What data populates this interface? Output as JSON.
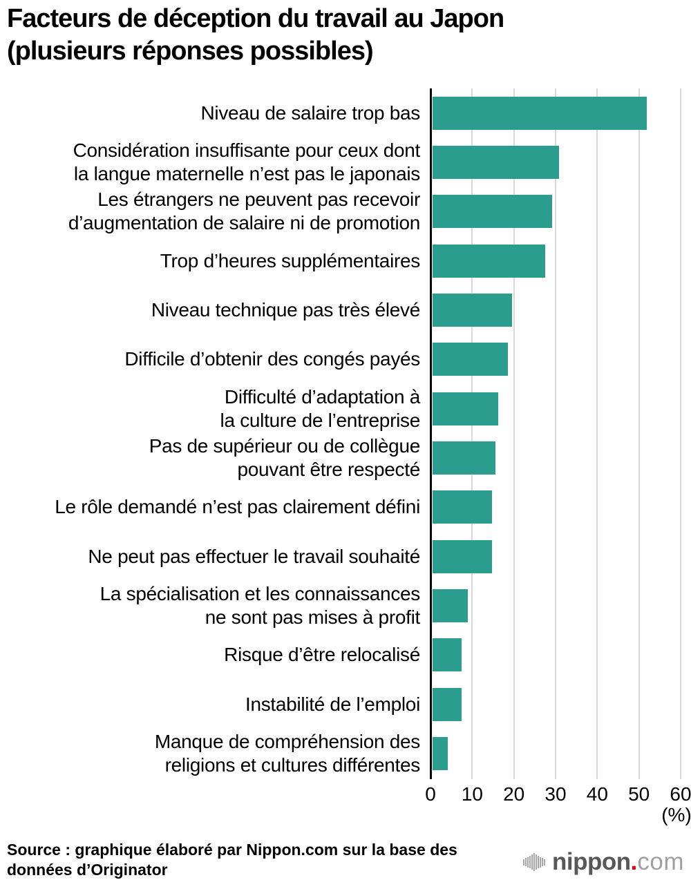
{
  "title": "Facteurs de déception du travail au Japon\n(plusieurs réponses possibles)",
  "chart_data": {
    "type": "bar",
    "orientation": "horizontal",
    "categories": [
      "Niveau de salaire trop bas",
      "Considération insuffisante pour ceux dont\nla langue maternelle n’est pas le japonais",
      "Les étrangers ne peuvent pas recevoir\nd’augmentation de salaire ni de promotion",
      "Trop d’heures supplémentaires",
      "Niveau technique pas très élevé",
      "Difficile d’obtenir des congés payés",
      "Difficulté d’adaptation à\nla culture de l’entreprise",
      "Pas de supérieur ou de collègue\npouvant être respecté",
      "Le rôle demandé n’est pas clairement défini",
      "Ne peut pas effectuer le travail souhaité",
      "La spécialisation et les connaissances\nne sont pas mises à profit",
      "Risque d’être relocalisé",
      "Instabilité de l’emploi",
      "Manque de compréhension des\nreligions et cultures différentes"
    ],
    "values": [
      51.8,
      30.8,
      29.1,
      27.5,
      19.6,
      18.6,
      16.3,
      15.5,
      14.7,
      14.7,
      8.9,
      7.4,
      7.4,
      4.2
    ],
    "xlim": [
      0,
      60
    ],
    "xticks": [
      0,
      10,
      20,
      30,
      40,
      50,
      60
    ],
    "x_unit_label": "(%)",
    "bar_color": "#2a9d8f",
    "gridline_color": "#d9d9d9",
    "axis_color": "#000000",
    "grid": true,
    "legend_position": "none"
  },
  "source": {
    "text": "Source : graphique élaboré par Nippon.com sur la base des\ndonnées d’Originator"
  },
  "logo": {
    "icon": "soundwave-fan-icon",
    "name": "nippon",
    "dot": ".",
    "tld": "com",
    "accent_color": "#e60012",
    "name_color": "#595757",
    "tld_color": "#9fa0a0"
  }
}
